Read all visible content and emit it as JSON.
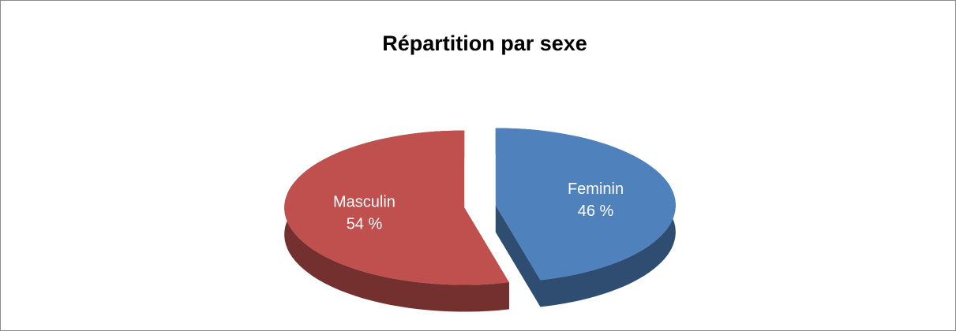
{
  "chart_data": {
    "type": "pie",
    "title": "Répartition par sexe",
    "categories": [
      "Feminin",
      "Masculin"
    ],
    "values": [
      46,
      54
    ],
    "value_labels": [
      "46 %",
      "54 %"
    ],
    "colors": [
      "#4f81bd",
      "#c0504d"
    ]
  }
}
